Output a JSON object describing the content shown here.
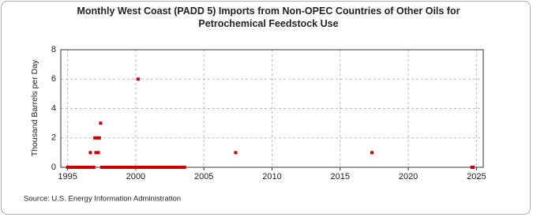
{
  "chart_data": {
    "type": "scatter",
    "title": "Monthly West Coast (PADD 5) Imports from Non-OPEC Countries of Other Oils for Petrochemical Feedstock Use",
    "y_label": "Thousand Barrels per Day",
    "source": "Source: U.S. Energy Information Administration",
    "color": "#cc0000",
    "grid": true,
    "x": [
      1995.0,
      1995.08,
      1995.17,
      1995.25,
      1995.33,
      1995.42,
      1995.5,
      1995.58,
      1995.67,
      1995.75,
      1995.83,
      1995.92,
      1996.0,
      1996.08,
      1996.17,
      1996.25,
      1996.33,
      1996.42,
      1996.5,
      1996.58,
      1996.67,
      1996.75,
      1996.83,
      1996.92,
      1997.0,
      1997.08,
      1997.17,
      1997.25,
      1997.33,
      1997.42,
      1997.5,
      1997.58,
      1997.67,
      1997.75,
      1997.83,
      1997.92,
      1998.0,
      1998.08,
      1998.17,
      1998.25,
      1998.33,
      1998.42,
      1998.5,
      1998.58,
      1998.67,
      1998.75,
      1998.83,
      1998.92,
      1999.0,
      1999.08,
      1999.17,
      1999.25,
      1999.33,
      1999.42,
      1999.5,
      1999.58,
      1999.67,
      1999.75,
      1999.83,
      1999.92,
      2000.0,
      2000.08,
      2000.17,
      2000.25,
      2000.33,
      2000.42,
      2000.5,
      2000.58,
      2000.67,
      2000.75,
      2000.83,
      2000.92,
      2001.0,
      2001.08,
      2001.17,
      2001.25,
      2001.33,
      2001.42,
      2001.5,
      2001.58,
      2001.67,
      2001.75,
      2001.83,
      2001.92,
      2002.0,
      2002.08,
      2002.17,
      2002.25,
      2002.33,
      2002.42,
      2002.5,
      2002.58,
      2002.67,
      2002.75,
      2002.83,
      2002.92,
      2003.0,
      2003.08,
      2003.17,
      2003.25,
      2003.33,
      2003.42,
      2003.5,
      2003.58,
      2007.33,
      2017.33,
      2024.67,
      2024.75
    ],
    "values": [
      0,
      0,
      0,
      0,
      0,
      0,
      0,
      0,
      0,
      0,
      0,
      0,
      0,
      0,
      0,
      0,
      0,
      0,
      0,
      0,
      1,
      0,
      0,
      0,
      2,
      1,
      2,
      1,
      2,
      3,
      0,
      0,
      0,
      0,
      0,
      0,
      0,
      0,
      0,
      0,
      0,
      0,
      0,
      0,
      0,
      0,
      0,
      0,
      0,
      0,
      0,
      0,
      0,
      0,
      0,
      0,
      0,
      0,
      0,
      0,
      0,
      0,
      6,
      0,
      0,
      0,
      0,
      0,
      0,
      0,
      0,
      0,
      0,
      0,
      0,
      0,
      0,
      0,
      0,
      0,
      0,
      0,
      0,
      0,
      0,
      0,
      0,
      0,
      0,
      0,
      0,
      0,
      0,
      0,
      0,
      0,
      0,
      0,
      0,
      0,
      0,
      0,
      0,
      0,
      1,
      1,
      0,
      0
    ],
    "xlim": [
      1994.5,
      2025.5
    ],
    "xticks": [
      1995,
      2000,
      2005,
      2010,
      2015,
      2020,
      2025
    ],
    "ylim": [
      0,
      8
    ],
    "yticks": [
      0,
      2,
      4,
      6,
      8
    ]
  }
}
